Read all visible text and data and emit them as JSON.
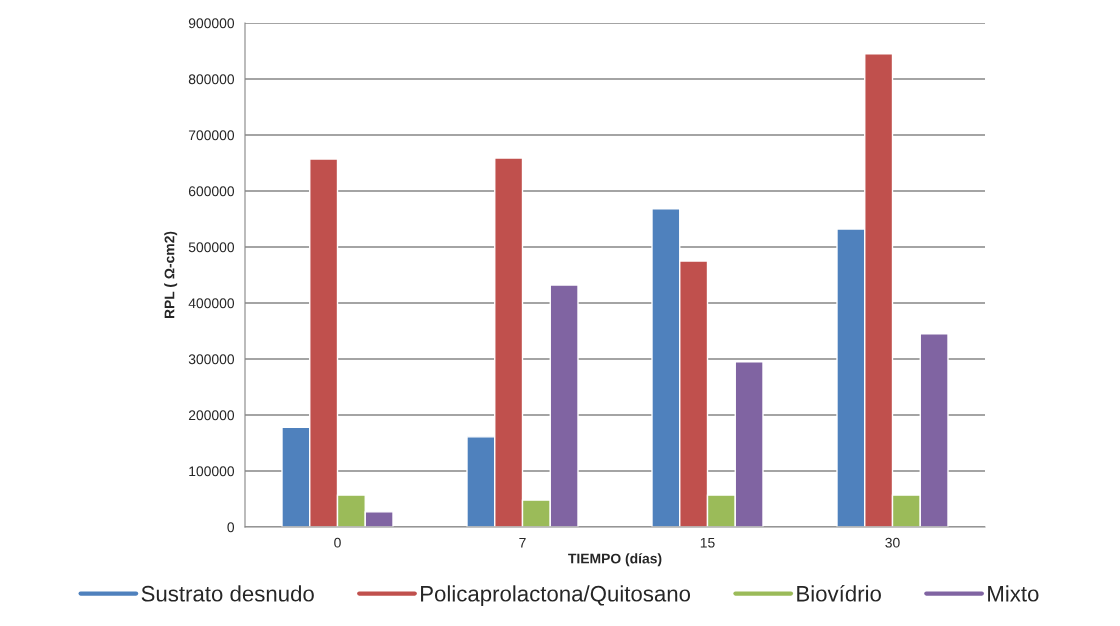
{
  "chart_data": {
    "type": "bar",
    "xlabel": "TIEMPO (días)",
    "ylabel": "RPL ( Ω-cm2)",
    "categories": [
      "0",
      "7",
      "15",
      "30"
    ],
    "series": [
      {
        "name": "Sustrato desnudo",
        "color": "#4f81bd",
        "values": [
          178000,
          161000,
          568000,
          532000
        ]
      },
      {
        "name": "Policaprolactona/Quitosano",
        "color": "#c0504d",
        "values": [
          657000,
          659000,
          475000,
          845000
        ]
      },
      {
        "name": "Biovídrio",
        "color": "#9bbb59",
        "values": [
          57000,
          48000,
          57000,
          57000
        ]
      },
      {
        "name": "Mixto",
        "color": "#8064a2",
        "values": [
          27000,
          432000,
          295000,
          345000
        ]
      }
    ],
    "ylim": [
      0,
      900000
    ],
    "yticks": [
      0,
      100000,
      200000,
      300000,
      400000,
      500000,
      600000,
      700000,
      800000,
      900000
    ],
    "grid": "y",
    "legend": "bottom"
  }
}
